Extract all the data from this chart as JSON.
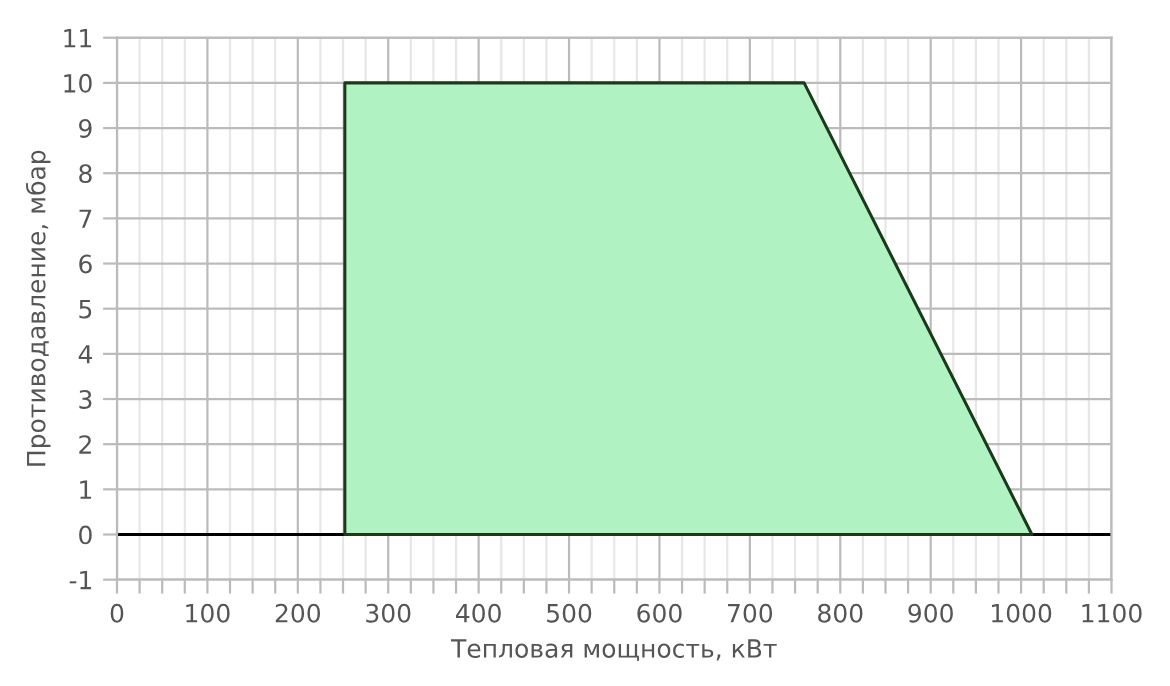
{
  "chart_data": {
    "type": "area",
    "xlabel": "Тепловая мощность, кВт",
    "ylabel": "Противодавление, мбар",
    "series": [
      {
        "color": "#b0f2c2",
        "x": [
          252,
          252,
          760,
          1012
        ],
        "values": [
          0,
          10,
          10,
          0
        ]
      }
    ],
    "xlim": [
      0,
      1100
    ],
    "ylim": [
      -1,
      11
    ],
    "xticks": [
      0,
      {
        "value": 25,
        "label": null
      },
      {
        "value": 50,
        "label": null
      },
      {
        "value": 75,
        "label": null
      },
      100,
      {
        "value": 125,
        "label": null
      },
      {
        "value": 150,
        "label": null
      },
      {
        "value": 175,
        "label": null
      },
      200,
      {
        "value": 225,
        "label": null
      },
      {
        "value": 250,
        "label": null
      },
      {
        "value": 275,
        "label": null
      },
      300,
      {
        "value": 325,
        "label": null
      },
      {
        "value": 350,
        "label": null
      },
      {
        "value": 375,
        "label": null
      },
      400,
      {
        "value": 425,
        "label": null
      },
      {
        "value": 450,
        "label": null
      },
      {
        "value": 475,
        "label": null
      },
      500,
      {
        "value": 525,
        "label": null
      },
      {
        "value": 550,
        "label": null
      },
      {
        "value": 575,
        "label": null
      },
      600,
      {
        "value": 625,
        "label": null
      },
      {
        "value": 650,
        "label": null
      },
      {
        "value": 675,
        "label": null
      },
      700,
      {
        "value": 725,
        "label": null
      },
      {
        "value": 750,
        "label": null
      },
      {
        "value": 775,
        "label": null
      },
      800,
      {
        "value": 825,
        "label": null
      },
      {
        "value": 850,
        "label": null
      },
      {
        "value": 875,
        "label": null
      },
      900,
      {
        "value": 925,
        "label": null
      },
      {
        "value": 950,
        "label": null
      },
      {
        "value": 975,
        "label": null
      },
      1000,
      {
        "value": 1025,
        "label": null
      },
      {
        "value": 1050,
        "label": null
      },
      {
        "value": 1075,
        "label": null
      },
      1100
    ],
    "yticks": [
      -1,
      0,
      1,
      2,
      3,
      4,
      5,
      6,
      7,
      8,
      9,
      10,
      11
    ],
    "ref_lines": [
      {
        "axis": "y",
        "value": 0,
        "color": "#000000"
      }
    ],
    "grid": true
  }
}
